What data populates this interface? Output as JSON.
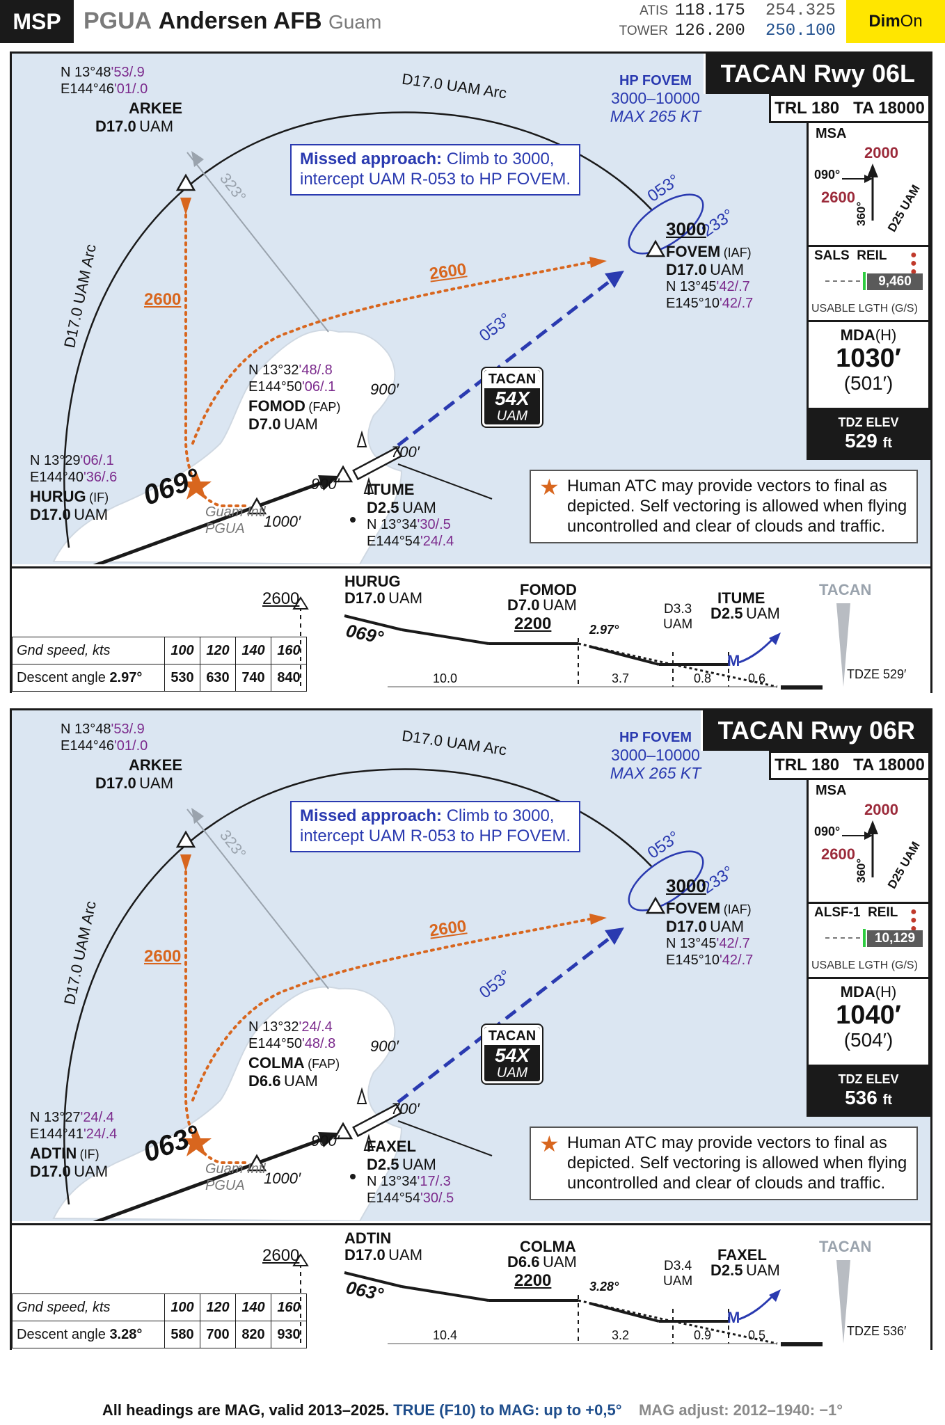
{
  "header": {
    "msp": "MSP",
    "icao": "PGUA",
    "name": "Andersen AFB",
    "location": "Guam",
    "atis_label": "ATIS",
    "atis_f1": "118.175",
    "atis_f2": "254.325",
    "tower_label": "TOWER",
    "tower_f1": "126.200",
    "tower_f2": "250.100",
    "dim": "Dim",
    "on": "On"
  },
  "common": {
    "hp_title": "HP FOVEM",
    "hp_alt": "3000–10000",
    "hp_speed": "MAX 265 KT",
    "missed_bold": "Missed approach:",
    "missed_l1": " Climb to 3000,",
    "missed_l2": "intercept UAM R-053 to HP FOVEM.",
    "arc_top": "D17.0 UAM Arc",
    "arc_left": "D17.0 UAM Arc",
    "inbound_hold": "053°",
    "outbound_hold": "233°",
    "final_course_missed": "053°",
    "radial_323": "323°",
    "alt_2600": "2600",
    "fovem_alt": "3000",
    "fovem_name": "FOVEM",
    "fovem_role": "(IAF)",
    "fovem_dist": "D17.0",
    "fovem_dme": "UAM",
    "fovem_lat_a": "N 13°45",
    "fovem_lat_b": "'42/.7",
    "fovem_lon_a": "E145°10",
    "fovem_lon_b": "'42/.7",
    "arkee_lat_a": "N 13°48",
    "arkee_lat_b": "'53/.9",
    "arkee_lon_a": "E144°46",
    "arkee_lon_b": "'01/.0",
    "arkee_name": "ARKEE",
    "arkee_dist": "D17.0",
    "arkee_dme": "UAM",
    "tacan_label": "TACAN",
    "tacan_ch": "54X",
    "tacan_id": "UAM",
    "elev_900": "900′",
    "elev_700": "700′",
    "elev_1000": "1000′",
    "airport_name": "Guam Intl",
    "airport_id": "PGUA",
    "note_l1": "Human ATC may provide vectors to final as",
    "note_l2": "depicted. Self vectoring is allowed when flying",
    "note_l3": "uncontrolled and clear of clouds and traffic.",
    "trl": "TRL 180",
    "ta": "TA 18000",
    "msa": "MSA",
    "msa_2000": "2000",
    "msa_2600": "2600",
    "msa_090": "090°",
    "msa_360": "360°",
    "msa_d25": "D25 UAM",
    "reil": "REIL",
    "usable": "USABLE LGTH (G/S)",
    "mda": "MDA",
    "mda_h": "(H)",
    "tdz_label": "TDZ ELEV",
    "ft": "ft",
    "prof_tacan": "TACAN",
    "gs_label": "Gnd speed, kts",
    "gs_speeds": [
      "100",
      "120",
      "140",
      "160"
    ],
    "descent_label": "Descent angle",
    "prof_2600": "2600",
    "prof_2200": "2200"
  },
  "approaches": [
    {
      "title": "TACAN Rwy 06L",
      "final_course": "069°",
      "if_lat_a": "N 13°29",
      "if_lat_b": "'06/.1",
      "if_lon_a": "E144°40",
      "if_lon_b": "'36/.6",
      "if_name": "HURUG",
      "if_role": "(IF)",
      "if_dist": "D17.0",
      "if_dme": "UAM",
      "faf_lat_a": "N 13°32",
      "faf_lat_b": "'48/.8",
      "faf_lon_a": "E144°50",
      "faf_lon_b": "'06/.1",
      "faf_name": "FOMOD",
      "faf_role": "(FAP)",
      "faf_dist": "D7.0",
      "faf_dme": "UAM",
      "sd_name": "ITUME",
      "sd_dist": "D2.5",
      "sd_dme": "UAM",
      "sd_lat_a": "N 13°34",
      "sd_lat_b": "'30/.5",
      "sd_lon_a": "E144°54",
      "sd_lon_b": "'24/.4",
      "lighting": "SALS",
      "rwy_length": "9,460",
      "mda": "1030′",
      "mda_hat": "(501′)",
      "tdz_elev": "529",
      "prof_angle": "2.97°",
      "prof_d": "D3.3",
      "prof_d_dme": "UAM",
      "prof_seg": [
        "10.0",
        "3.7",
        "0.8",
        "0.6"
      ],
      "prof_tdze": "TDZE 529′",
      "gs_angle": "2.97°",
      "gs_values": [
        "530",
        "630",
        "740",
        "840"
      ]
    },
    {
      "title": "TACAN Rwy 06R",
      "final_course": "063°",
      "if_lat_a": "N 13°27",
      "if_lat_b": "'24/.4",
      "if_lon_a": "E144°41",
      "if_lon_b": "'24/.4",
      "if_name": "ADTIN",
      "if_role": "(IF)",
      "if_dist": "D17.0",
      "if_dme": "UAM",
      "faf_lat_a": "N 13°32",
      "faf_lat_b": "'24/.4",
      "faf_lon_a": "E144°50",
      "faf_lon_b": "'48/.8",
      "faf_name": "COLMA",
      "faf_role": "(FAP)",
      "faf_dist": "D6.6",
      "faf_dme": "UAM",
      "sd_name": "FAXEL",
      "sd_dist": "D2.5",
      "sd_dme": "UAM",
      "sd_lat_a": "N 13°34",
      "sd_lat_b": "'17/.3",
      "sd_lon_a": "E144°54",
      "sd_lon_b": "'30/.5",
      "lighting": "ALSF-1",
      "rwy_length": "10,129",
      "mda": "1040′",
      "mda_hat": "(504′)",
      "tdz_elev": "536",
      "prof_angle": "3.28°",
      "prof_d": "D3.4",
      "prof_d_dme": "UAM",
      "prof_seg": [
        "10.4",
        "3.2",
        "0.9",
        "0.5"
      ],
      "prof_tdze": "TDZE 536′",
      "gs_angle": "3.28°",
      "gs_values": [
        "580",
        "700",
        "820",
        "930"
      ]
    }
  ],
  "footer": {
    "part1": "All headings are MAG, valid 2013–2025.",
    "part2": " TRUE (F10) to MAG: up to +0,5°",
    "part3": "MAG adjust: 2012–1940: −1°"
  }
}
